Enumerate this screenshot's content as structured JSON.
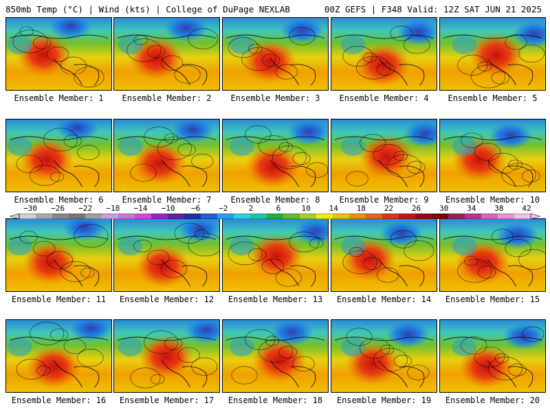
{
  "header": {
    "left": "850mb Temp (°C) | Wind (kts) | College of DuPage NEXLAB",
    "right": "00Z GEFS | F348 Valid: 12Z SAT JUN 21 2025"
  },
  "colorbar": {
    "labels": [
      "−30",
      "−26",
      "−22",
      "−18",
      "−14",
      "−10",
      "−6",
      "−2",
      "2",
      "6",
      "10",
      "14",
      "18",
      "22",
      "26",
      "30",
      "34",
      "38",
      "42"
    ],
    "values": [
      -30,
      -26,
      -22,
      -18,
      -14,
      -10,
      -6,
      -2,
      2,
      6,
      10,
      14,
      18,
      22,
      26,
      30,
      34,
      38,
      42
    ],
    "colors": [
      "#d0d0d0",
      "#a8a8a8",
      "#888888",
      "#777777",
      "#a0a0a0",
      "#c8a0e8",
      "#d070d8",
      "#e040e0",
      "#a020c8",
      "#6020a0",
      "#2030a0",
      "#2060d8",
      "#20a0f0",
      "#30d0e0",
      "#20c8a0",
      "#20b040",
      "#60c020",
      "#a8d020",
      "#f0f000",
      "#f0c000",
      "#f09000",
      "#f06010",
      "#e83010",
      "#c81010",
      "#a00810",
      "#800000",
      "#a02050",
      "#c03090",
      "#e060c0",
      "#f090d8",
      "#f8c0e8"
    ]
  },
  "members": [
    {
      "label": "Ensemble Member: 1"
    },
    {
      "label": "Ensemble Member: 2"
    },
    {
      "label": "Ensemble Member: 3"
    },
    {
      "label": "Ensemble Member: 4"
    },
    {
      "label": "Ensemble Member: 5"
    },
    {
      "label": "Ensemble Member: 6"
    },
    {
      "label": "Ensemble Member: 7"
    },
    {
      "label": "Ensemble Member: 8"
    },
    {
      "label": "Ensemble Member: 9"
    },
    {
      "label": "Ensemble Member: 10"
    },
    {
      "label": "Ensemble Member: 11"
    },
    {
      "label": "Ensemble Member: 12"
    },
    {
      "label": "Ensemble Member: 13"
    },
    {
      "label": "Ensemble Member: 14"
    },
    {
      "label": "Ensemble Member: 15"
    },
    {
      "label": "Ensemble Member: 16"
    },
    {
      "label": "Ensemble Member: 17"
    },
    {
      "label": "Ensemble Member: 18"
    },
    {
      "label": "Ensemble Member: 19"
    },
    {
      "label": "Ensemble Member: 20"
    }
  ]
}
